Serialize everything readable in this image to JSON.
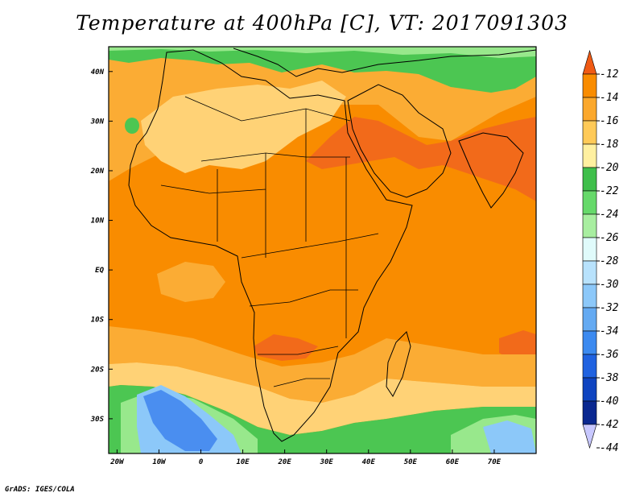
{
  "title": "Temperature at 400hPa [C], VT: 2017091303",
  "credit": "GrADS: IGES/COLA",
  "axes": {
    "lon_ticks": [
      "20W",
      "10W",
      "0",
      "10E",
      "20E",
      "30E",
      "40E",
      "50E",
      "60E",
      "70E"
    ],
    "lon_values": [
      -20,
      -10,
      0,
      10,
      20,
      30,
      40,
      50,
      60,
      70
    ],
    "lat_ticks": [
      "40N",
      "30N",
      "20N",
      "10N",
      "EQ",
      "10S",
      "20S",
      "30S"
    ],
    "lat_values": [
      40,
      30,
      20,
      10,
      0,
      -10,
      -20,
      -30
    ],
    "lon_range": [
      -22,
      80
    ],
    "lat_range": [
      -37,
      45
    ]
  },
  "colorbar": {
    "labels": [
      "-12",
      "-14",
      "-16",
      "-18",
      "-20",
      "-22",
      "-24",
      "-26",
      "-28",
      "-30",
      "-32",
      "-34",
      "-36",
      "-38",
      "-40",
      "-42",
      "-44"
    ],
    "values": [
      -12,
      -14,
      -16,
      -18,
      -20,
      -22,
      -24,
      -26,
      -28,
      -30,
      -32,
      -34,
      -36,
      -38,
      -40,
      -42,
      -44
    ],
    "colors": [
      "#f05a14",
      "#f98c00",
      "#fba82c",
      "#ffca58",
      "#fff0a0",
      "#3fbf4b",
      "#66d96a",
      "#a8eea0",
      "#e0fbfb",
      "#b8e2fc",
      "#8cc8f9",
      "#64aaf2",
      "#3c8af0",
      "#2062e0",
      "#0f44c0",
      "#0a2890",
      "#c8c8ff"
    ]
  },
  "map_colors": {
    "warm": "#f98c00",
    "warmer": "#f26a1a",
    "mild": "#fbac34",
    "cool": "#ffd276",
    "pale": "#fff0a0",
    "green": "#4cc652",
    "lightgreen": "#98e88c",
    "sky": "#8cc8f9",
    "blue": "#4a8ef0"
  }
}
